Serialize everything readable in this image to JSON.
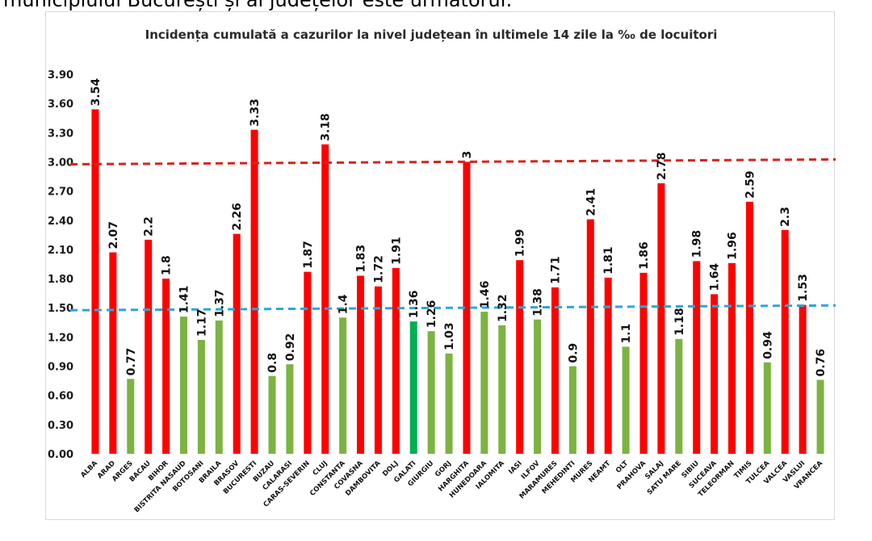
{
  "page": {
    "intro_text": "municipiului București și al județelor este următorul:"
  },
  "chart_data": {
    "type": "bar",
    "title": "Incidența cumulată a cazurilor la nivel județean în ultimele 14 zile la ‰ de locuitori",
    "xlabel": "",
    "ylabel": "",
    "ylim": [
      0,
      3.9
    ],
    "yticks": [
      "0.00",
      "0.30",
      "0.60",
      "0.90",
      "1.20",
      "1.50",
      "1.80",
      "2.10",
      "2.40",
      "2.70",
      "3.00",
      "3.30",
      "3.60",
      "3.90"
    ],
    "grid": false,
    "legend": "none",
    "colors": {
      "above": "#ff0000",
      "below": "#7cb342",
      "highlight": "#00b050",
      "red_line": "#d9231c",
      "blue_line": "#29a8d6"
    },
    "thresholds": [
      {
        "value": 3.0,
        "color": "#d9231c",
        "style": "dashed"
      },
      {
        "value": 1.5,
        "color": "#29a8d6",
        "style": "dashed"
      }
    ],
    "categories": [
      "ALBA",
      "ARAD",
      "ARGES",
      "BACAU",
      "BIHOR",
      "BISTRITA NASAUD",
      "BOTOSANI",
      "BRAILA",
      "BRASOV",
      "BUCURESTI",
      "BUZAU",
      "CALARASI",
      "CARAS-SEVERIN",
      "CLUJ",
      "CONSTANTA",
      "COVASNA",
      "DAMBOVITA",
      "DOLJ",
      "GALATI",
      "GIURGIU",
      "GORJ",
      "HARGHITA",
      "HUNEDOARA",
      "IALOMITA",
      "IASI",
      "ILFOV",
      "MARAMURES",
      "MEHEDINTI",
      "MURES",
      "NEAMT",
      "OLT",
      "PRAHOVA",
      "SALAJ",
      "SATU MARE",
      "SIBIU",
      "SUCEAVA",
      "TELEORMAN",
      "TIMIS",
      "TULCEA",
      "VALCEA",
      "VASLUI",
      "VRANCEA"
    ],
    "values": [
      3.54,
      2.07,
      0.77,
      2.2,
      1.8,
      1.41,
      1.17,
      1.37,
      2.26,
      3.33,
      0.8,
      0.92,
      1.87,
      3.18,
      1.4,
      1.83,
      1.72,
      1.91,
      1.36,
      1.26,
      1.03,
      3,
      1.46,
      1.32,
      1.99,
      1.38,
      1.71,
      0.9,
      2.41,
      1.81,
      1.1,
      1.86,
      2.78,
      1.18,
      1.98,
      1.64,
      1.96,
      2.59,
      0.94,
      2.3,
      1.53,
      0.76
    ],
    "value_labels": [
      "3.54",
      "2.07",
      "0.77",
      "2.2",
      "1.8",
      "1.41",
      "1.17",
      "1.37",
      "2.26",
      "3.33",
      "0.8",
      "0.92",
      "1.87",
      "3.18",
      "1.4",
      "1.83",
      "1.72",
      "1.91",
      "1.36",
      "1.26",
      "1.03",
      "3",
      "1.46",
      "1.32",
      "1.99",
      "1.38",
      "1.71",
      "0.9",
      "2.41",
      "1.81",
      "1.1",
      "1.86",
      "2.78",
      "1.18",
      "1.98",
      "1.64",
      "1.96",
      "2.59",
      "0.94",
      "2.3",
      "1.53",
      "0.76"
    ],
    "bar_colors": [
      "#ff0000",
      "#ff0000",
      "#7cb342",
      "#ff0000",
      "#ff0000",
      "#7cb342",
      "#7cb342",
      "#7cb342",
      "#ff0000",
      "#ff0000",
      "#7cb342",
      "#7cb342",
      "#ff0000",
      "#ff0000",
      "#7cb342",
      "#ff0000",
      "#ff0000",
      "#ff0000",
      "#00b050",
      "#7cb342",
      "#7cb342",
      "#ff0000",
      "#7cb342",
      "#7cb342",
      "#ff0000",
      "#7cb342",
      "#ff0000",
      "#7cb342",
      "#ff0000",
      "#ff0000",
      "#7cb342",
      "#ff0000",
      "#ff0000",
      "#7cb342",
      "#ff0000",
      "#ff0000",
      "#ff0000",
      "#ff0000",
      "#7cb342",
      "#ff0000",
      "#ff0000",
      "#7cb342"
    ]
  }
}
